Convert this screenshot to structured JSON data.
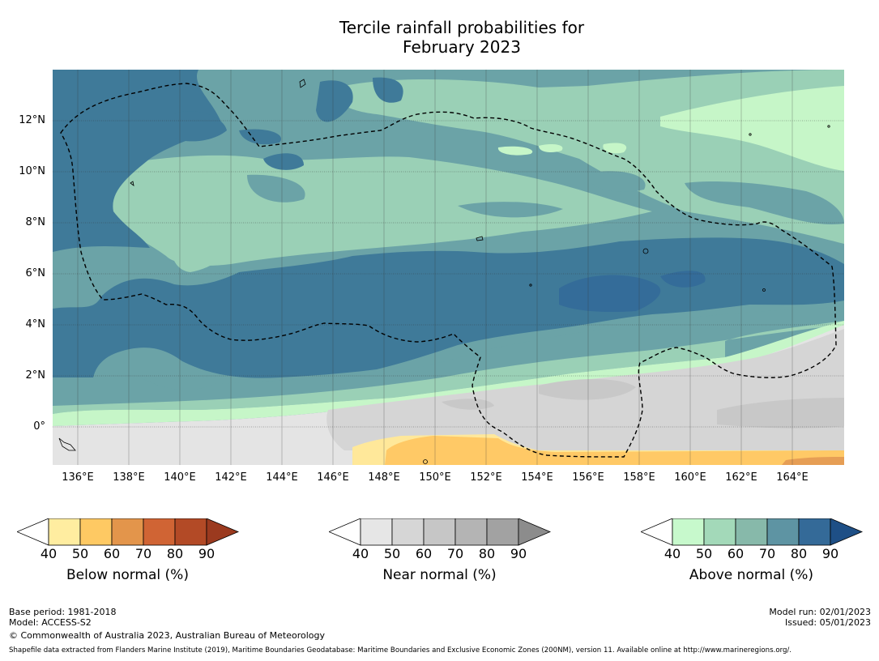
{
  "title_line1": "Tercile rainfall probabilities for",
  "title_line2": "February 2023",
  "map": {
    "lat_labels": [
      "12°N",
      "10°N",
      "8°N",
      "6°N",
      "4°N",
      "2°N",
      "0°"
    ],
    "lon_labels": [
      "136°E",
      "138°E",
      "140°E",
      "142°E",
      "144°E",
      "146°E",
      "148°E",
      "150°E",
      "152°E",
      "154°E",
      "156°E",
      "158°E",
      "160°E",
      "162°E",
      "164°E"
    ],
    "colors": {
      "above_60": "#6ba3a7",
      "above_70": "#3f7a99",
      "above_80": "#346c99",
      "above_50": "#9ad0b6",
      "above_40": "#c6f6c8",
      "near_40": "#e4e4e4",
      "near_50": "#d5d5d5",
      "near_60": "#c8c8c8",
      "below_40": "#ffe89a",
      "below_50": "#ffc966",
      "below_60": "#e69e55"
    }
  },
  "colorbars": [
    {
      "ticks": [
        "40",
        "50",
        "60",
        "70",
        "80",
        "90"
      ],
      "colors": [
        "#ffeda0",
        "#fec963",
        "#e3954b",
        "#d06434",
        "#b34a26",
        "#9b3a1f"
      ],
      "label": "Below normal (%)"
    },
    {
      "ticks": [
        "40",
        "50",
        "60",
        "70",
        "80",
        "90"
      ],
      "colors": [
        "#e6e6e6",
        "#d6d6d6",
        "#c6c6c6",
        "#b4b4b4",
        "#a2a2a2",
        "#8c8c8c"
      ],
      "label": "Near normal (%)"
    },
    {
      "ticks": [
        "40",
        "50",
        "60",
        "70",
        "80",
        "90"
      ],
      "colors": [
        "#c7f9cc",
        "#a3d9b9",
        "#87b9aa",
        "#5e94a3",
        "#346a98",
        "#1e4f86"
      ],
      "label": "Above normal (%)"
    }
  ],
  "footer": {
    "base_period": "Base period: 1981-2018",
    "model": "Model: ACCESS-S2",
    "copyright": "© Commonwealth of Australia 2023, Australian Bureau of Meteorology",
    "model_run": "Model run: 02/01/2023",
    "issued": "Issued: 05/01/2023",
    "shapefile": "Shapefile data extracted from Flanders Marine Institute (2019), Maritime Boundaries Geodatabase: Maritime Boundaries and Exclusive Economic Zones (200NM), version 11. Available online at http://www.marineregions.org/."
  }
}
